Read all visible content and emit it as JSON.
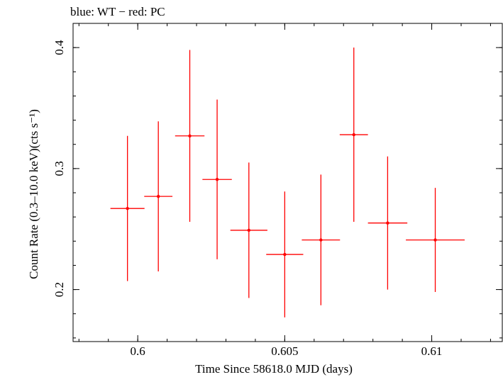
{
  "header": {
    "title": "blue: WT − red: PC"
  },
  "colors": {
    "series_pc": "#ff0000",
    "axes": "#000000"
  },
  "chart_data": {
    "type": "scatter",
    "title": "blue: WT − red: PC",
    "xlabel": "Time Since 58618.0 MJD (days)",
    "ylabel": "Count Rate (0.3–10.0 keV)(cts s⁻¹)",
    "xlim": [
      0.5978,
      0.6124
    ],
    "ylim": [
      0.157,
      0.42
    ],
    "x_ticks": [
      0.6,
      0.605,
      0.61
    ],
    "x_tick_labels": [
      "0.6",
      "0.605",
      "0.61"
    ],
    "y_ticks": [
      0.2,
      0.3,
      0.4
    ],
    "y_tick_labels": [
      "0.2",
      "0.3",
      "0.4"
    ],
    "grid": false,
    "series": [
      {
        "name": "PC",
        "color": "#ff0000",
        "points": [
          {
            "x": 0.59965,
            "xerr": 0.00058,
            "y": 0.267,
            "yerr": 0.06
          },
          {
            "x": 0.6007,
            "xerr": 0.00048,
            "y": 0.277,
            "yerr": 0.062
          },
          {
            "x": 0.60177,
            "xerr": 0.0005,
            "y": 0.327,
            "yerr": 0.071
          },
          {
            "x": 0.6027,
            "xerr": 0.0005,
            "y": 0.291,
            "yerr": 0.066
          },
          {
            "x": 0.60378,
            "xerr": 0.00063,
            "y": 0.249,
            "yerr": 0.056
          },
          {
            "x": 0.605,
            "xerr": 0.00063,
            "y": 0.229,
            "yerr": 0.052
          },
          {
            "x": 0.60623,
            "xerr": 0.00065,
            "y": 0.241,
            "yerr": 0.054
          },
          {
            "x": 0.60735,
            "xerr": 0.00048,
            "y": 0.328,
            "yerr": 0.072
          },
          {
            "x": 0.6085,
            "xerr": 0.00067,
            "y": 0.255,
            "yerr": 0.055
          },
          {
            "x": 0.61012,
            "xerr": 0.001,
            "y": 0.241,
            "yerr": 0.043
          }
        ]
      }
    ]
  }
}
